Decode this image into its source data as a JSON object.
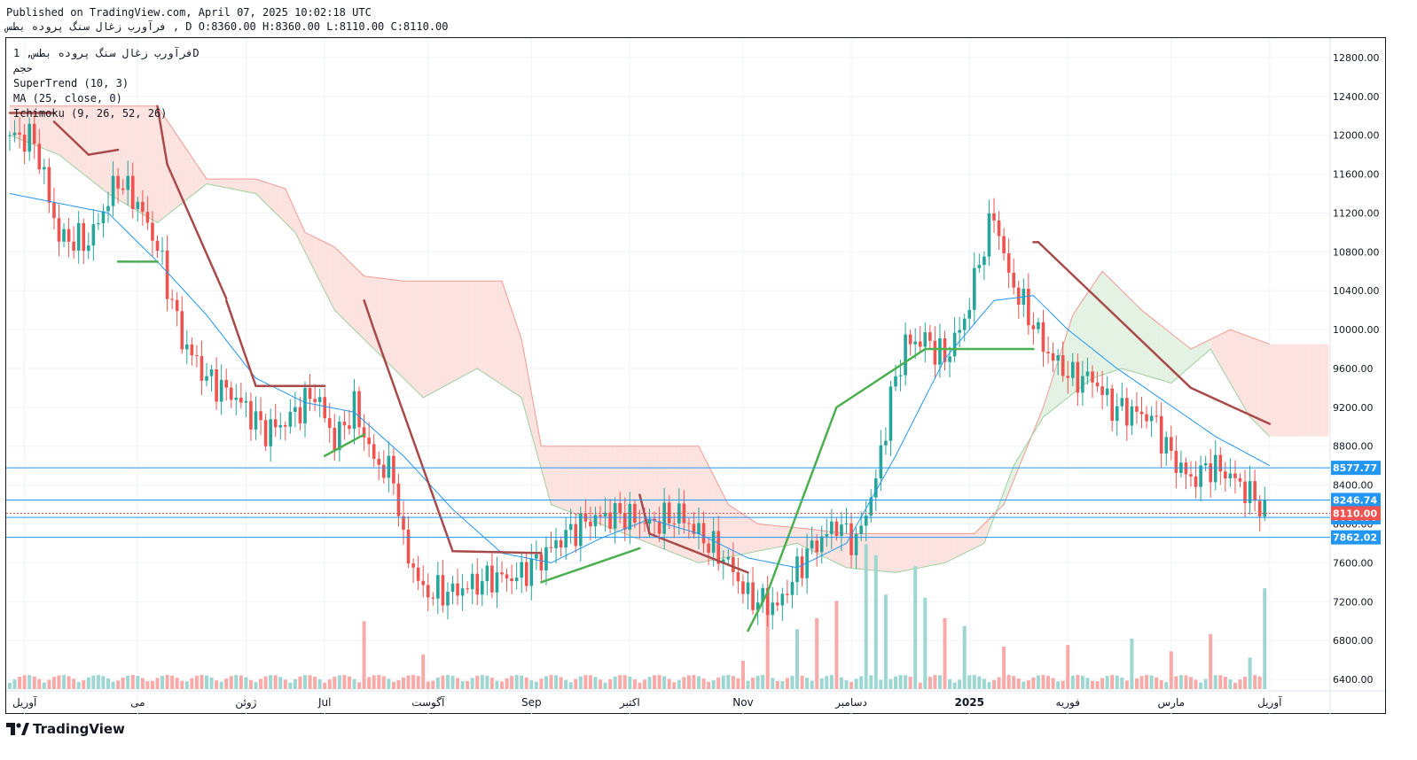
{
  "header": {
    "line1": "Published on TradingView.com, April 07, 2025 10:02:18 UTC",
    "line2": "فرآورب زغال سنگ پروده بطس , D O:8360.00 H:8360.00 L:8110.00 C:8110.00"
  },
  "legend": {
    "symbol": "فرآورب زغال سنگ پروده بطس, 1D",
    "sub": "حجم",
    "supertrend": "SuperTrend (10, 3)",
    "ma": "MA (25, close, 0)",
    "ichimoku": "Ichimoku (9, 26, 52, 26)"
  },
  "brand": {
    "name": "TradingView",
    "logo_icon": "tradingview-logo-icon"
  },
  "colors": {
    "up": "#26a69a",
    "down": "#ef5350",
    "supertrend_up": "#4caf50",
    "supertrend_down": "#a94a4a",
    "ma": "#2196f3",
    "cloud_bear": "#fce3e0",
    "cloud_bull": "#e3f2e3",
    "hline": "#2196f3",
    "last_price": "#ef5350"
  },
  "chart_data": {
    "type": "candlestick",
    "ylim": [
      6300,
      13000
    ],
    "y_ticks": [
      12800,
      12400,
      12000,
      11600,
      11200,
      10800,
      10400,
      10000,
      9600,
      9200,
      8800,
      8400,
      8000,
      7600,
      7200,
      6800,
      6400
    ],
    "x_labels": [
      "آوریل",
      "می",
      "ژوئن",
      "Jul",
      "آگوست",
      "Sep",
      "اکتبر",
      "Nov",
      "دسامبر",
      "2025",
      "فوریه",
      "مارس",
      "آوریل"
    ],
    "x_label_index": [
      3,
      26,
      48,
      64,
      85,
      106,
      126,
      149,
      171,
      195,
      215,
      236,
      256
    ],
    "horizontal_levels": [
      {
        "value": 8577.77,
        "label": "8577.77"
      },
      {
        "value": 8246.74,
        "label": "8246.74"
      },
      {
        "value": 8067.8,
        "label": "8067.80"
      },
      {
        "value": 7862.02,
        "label": "7862.02"
      }
    ],
    "last_price": {
      "value": 8110.0,
      "label": "8110.00"
    },
    "close_path_keys": [
      [
        0,
        12000
      ],
      [
        5,
        11950
      ],
      [
        10,
        10950
      ],
      [
        16,
        10900
      ],
      [
        22,
        11550
      ],
      [
        26,
        11300
      ],
      [
        30,
        10850
      ],
      [
        35,
        9900
      ],
      [
        40,
        9500
      ],
      [
        46,
        9300
      ],
      [
        52,
        8950
      ],
      [
        56,
        9050
      ],
      [
        62,
        9350
      ],
      [
        66,
        8850
      ],
      [
        70,
        9200
      ],
      [
        74,
        8650
      ],
      [
        78,
        8500
      ],
      [
        80,
        7800
      ],
      [
        84,
        7300
      ],
      [
        90,
        7300
      ],
      [
        98,
        7450
      ],
      [
        103,
        7450
      ],
      [
        108,
        7650
      ],
      [
        112,
        7850
      ],
      [
        118,
        8050
      ],
      [
        124,
        8100
      ],
      [
        130,
        8000
      ],
      [
        136,
        8100
      ],
      [
        140,
        7900
      ],
      [
        146,
        7600
      ],
      [
        150,
        7250
      ],
      [
        156,
        7150
      ],
      [
        162,
        7700
      ],
      [
        168,
        8000
      ],
      [
        172,
        7800
      ],
      [
        176,
        8450
      ],
      [
        179,
        9300
      ],
      [
        182,
        9850
      ],
      [
        186,
        9900
      ],
      [
        190,
        9700
      ],
      [
        194,
        10100
      ],
      [
        197,
        10700
      ],
      [
        200,
        11200
      ],
      [
        203,
        10550
      ],
      [
        207,
        10150
      ],
      [
        211,
        9750
      ],
      [
        216,
        9500
      ],
      [
        220,
        9500
      ],
      [
        224,
        9200
      ],
      [
        228,
        9150
      ],
      [
        232,
        9100
      ],
      [
        236,
        8700
      ],
      [
        240,
        8450
      ],
      [
        244,
        8600
      ],
      [
        248,
        8500
      ],
      [
        252,
        8300
      ],
      [
        254,
        8200
      ],
      [
        255,
        8110
      ]
    ],
    "volume_spikes": [
      [
        72,
        0.43
      ],
      [
        84,
        0.22
      ],
      [
        149,
        0.18
      ],
      [
        154,
        0.57
      ],
      [
        160,
        0.38
      ],
      [
        164,
        0.45
      ],
      [
        168,
        0.56
      ],
      [
        174,
        0.92
      ],
      [
        176,
        0.85
      ],
      [
        178,
        0.6
      ],
      [
        184,
        0.78
      ],
      [
        186,
        0.58
      ],
      [
        190,
        0.45
      ],
      [
        194,
        0.4
      ],
      [
        202,
        0.27
      ],
      [
        215,
        0.28
      ],
      [
        228,
        0.32
      ],
      [
        236,
        0.24
      ],
      [
        244,
        0.35
      ],
      [
        252,
        0.2
      ],
      [
        255,
        0.64
      ]
    ],
    "supertrend_keys": [
      {
        "i": [
          0,
          9
        ],
        "v": [
          12230,
          12230
        ],
        "dir": "down"
      },
      {
        "i": [
          9,
          16
        ],
        "v": [
          12140,
          11800
        ],
        "dir": "down"
      },
      {
        "i": [
          16,
          22
        ],
        "v": [
          11800,
          11850
        ],
        "dir": "down"
      },
      {
        "i": [
          22,
          30
        ],
        "v": [
          10700,
          10700
        ],
        "dir": "up"
      },
      {
        "i": [
          30,
          32
        ],
        "v": [
          12300,
          11700
        ],
        "dir": "down"
      },
      {
        "i": [
          32,
          44
        ],
        "v": [
          11700,
          10320
        ],
        "dir": "down"
      },
      {
        "i": [
          44,
          50
        ],
        "v": [
          10300,
          9420
        ],
        "dir": "down"
      },
      {
        "i": [
          50,
          64
        ],
        "v": [
          9420,
          9420
        ],
        "dir": "down"
      },
      {
        "i": [
          64,
          72
        ],
        "v": [
          8700,
          8920
        ],
        "dir": "up"
      },
      {
        "i": [
          72,
          74
        ],
        "v": [
          10300,
          10000
        ],
        "dir": "down"
      },
      {
        "i": [
          74,
          90
        ],
        "v": [
          10000,
          7720
        ],
        "dir": "down"
      },
      {
        "i": [
          90,
          108
        ],
        "v": [
          7720,
          7700
        ],
        "dir": "down"
      },
      {
        "i": [
          108,
          128
        ],
        "v": [
          7400,
          7750
        ],
        "dir": "up"
      },
      {
        "i": [
          128,
          130
        ],
        "v": [
          8300,
          7900
        ],
        "dir": "down"
      },
      {
        "i": [
          130,
          150
        ],
        "v": [
          7900,
          7500
        ],
        "dir": "down"
      },
      {
        "i": [
          150,
          154
        ],
        "v": [
          6900,
          7300
        ],
        "dir": "up"
      },
      {
        "i": [
          154,
          168
        ],
        "v": [
          7300,
          9200
        ],
        "dir": "up"
      },
      {
        "i": [
          168,
          186
        ],
        "v": [
          9200,
          9800
        ],
        "dir": "up"
      },
      {
        "i": [
          186,
          208
        ],
        "v": [
          9800,
          9800
        ],
        "dir": "up"
      },
      {
        "i": [
          208,
          209
        ],
        "v": [
          10900,
          10900
        ],
        "dir": "down"
      },
      {
        "i": [
          209,
          240
        ],
        "v": [
          10900,
          9400
        ],
        "dir": "down"
      },
      {
        "i": [
          240,
          256
        ],
        "v": [
          9400,
          9030
        ],
        "dir": "down"
      }
    ],
    "ma_keys": [
      [
        0,
        11400
      ],
      [
        10,
        11300
      ],
      [
        20,
        11200
      ],
      [
        30,
        10700
      ],
      [
        40,
        10150
      ],
      [
        50,
        9500
      ],
      [
        60,
        9250
      ],
      [
        70,
        9150
      ],
      [
        80,
        8700
      ],
      [
        90,
        8150
      ],
      [
        100,
        7700
      ],
      [
        110,
        7600
      ],
      [
        120,
        7850
      ],
      [
        130,
        8050
      ],
      [
        140,
        7900
      ],
      [
        150,
        7650
      ],
      [
        160,
        7550
      ],
      [
        170,
        7800
      ],
      [
        180,
        8700
      ],
      [
        190,
        9700
      ],
      [
        200,
        10300
      ],
      [
        208,
        10350
      ],
      [
        215,
        10000
      ],
      [
        225,
        9600
      ],
      [
        235,
        9250
      ],
      [
        245,
        8900
      ],
      [
        256,
        8600
      ]
    ],
    "cloud_top_keys": [
      [
        0,
        12300
      ],
      [
        30,
        12300
      ],
      [
        36,
        11850
      ],
      [
        40,
        11550
      ],
      [
        50,
        11550
      ],
      [
        56,
        11450
      ],
      [
        60,
        11000
      ],
      [
        66,
        10850
      ],
      [
        72,
        10550
      ],
      [
        80,
        10500
      ],
      [
        100,
        10500
      ],
      [
        104,
        9900
      ],
      [
        108,
        8800
      ],
      [
        120,
        8800
      ],
      [
        140,
        8800
      ],
      [
        146,
        8200
      ],
      [
        152,
        8000
      ],
      [
        162,
        7950
      ],
      [
        170,
        7900
      ],
      [
        185,
        7900
      ],
      [
        196,
        7900
      ],
      [
        202,
        8200
      ],
      [
        210,
        9200
      ],
      [
        216,
        10150
      ],
      [
        222,
        10600
      ],
      [
        230,
        10200
      ],
      [
        240,
        9800
      ],
      [
        248,
        10000
      ],
      [
        256,
        9850
      ]
    ],
    "cloud_bot_keys": [
      [
        0,
        12000
      ],
      [
        10,
        11800
      ],
      [
        20,
        11400
      ],
      [
        30,
        11100
      ],
      [
        40,
        11500
      ],
      [
        50,
        11400
      ],
      [
        58,
        11000
      ],
      [
        66,
        10200
      ],
      [
        74,
        9800
      ],
      [
        84,
        9300
      ],
      [
        95,
        9600
      ],
      [
        104,
        9300
      ],
      [
        110,
        8200
      ],
      [
        120,
        8000
      ],
      [
        130,
        7800
      ],
      [
        140,
        7600
      ],
      [
        150,
        7700
      ],
      [
        160,
        7800
      ],
      [
        170,
        7550
      ],
      [
        180,
        7500
      ],
      [
        190,
        7600
      ],
      [
        198,
        7800
      ],
      [
        204,
        8600
      ],
      [
        210,
        9100
      ],
      [
        220,
        9500
      ],
      [
        226,
        9600
      ],
      [
        236,
        9450
      ],
      [
        244,
        9800
      ],
      [
        252,
        9100
      ],
      [
        256,
        8900
      ]
    ]
  }
}
